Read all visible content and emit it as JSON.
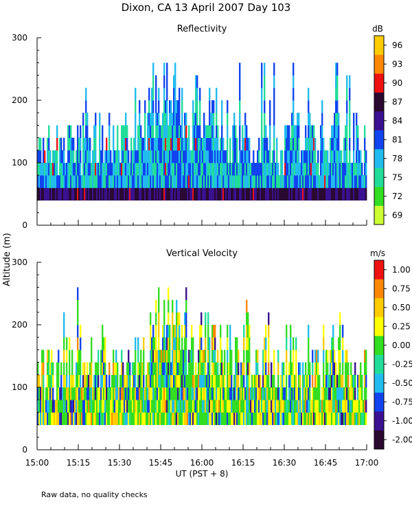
{
  "chart_data": {
    "title": "Dixon, CA 13 April 2007  Day 103",
    "ylabel": "Altitude (m)",
    "xlabel": "UT  (PST + 8)",
    "footnote": "Raw data, no quality checks",
    "x_ticks": [
      "15:00",
      "15:15",
      "15:30",
      "15:45",
      "16:00",
      "16:15",
      "16:30",
      "16:45",
      "17:00"
    ],
    "x_range_minutes": [
      0,
      120
    ],
    "panels": [
      {
        "type": "heatmap",
        "title": "Reflectivity",
        "unit": "dB",
        "ylim": [
          0,
          300
        ],
        "y_ticks": [
          "0",
          "100",
          "200",
          "300"
        ],
        "gate_bottom_m": 40,
        "gate_size_m": 20,
        "colorbar_labels": [
          "69",
          "72",
          "75",
          "78",
          "81",
          "84",
          "87",
          "90",
          "93",
          "96"
        ],
        "colorbar_colors": [
          "#ccff33",
          "#33dd22",
          "#22dd99",
          "#22bbee",
          "#1144ee",
          "#3a1190",
          "#2a0a30",
          "#ee1111",
          "#ff8800",
          "#ffcc00"
        ],
        "echo_top_profile_m": [
          140,
          150,
          130,
          160,
          170,
          150,
          160,
          170,
          180,
          150,
          160,
          170,
          175,
          180,
          230,
          260,
          240,
          220,
          200,
          190,
          210,
          215,
          200,
          190,
          180,
          160,
          150,
          160,
          190,
          150,
          140,
          180,
          160,
          150,
          150,
          140,
          200,
          170,
          150,
          140,
          160
        ]
      },
      {
        "type": "heatmap",
        "title": "Vertical Velocity",
        "unit": "m/s",
        "ylim": [
          0,
          300
        ],
        "y_ticks": [
          "0",
          "100",
          "200",
          "300"
        ],
        "gate_bottom_m": 40,
        "gate_size_m": 20,
        "colorbar_labels": [
          "-2.00",
          "-1.00",
          "-0.75",
          "-0.50",
          "-0.25",
          "0.00",
          "0.25",
          "0.50",
          "0.75",
          "1.00"
        ],
        "colorbar_colors": [
          "#2a0a30",
          "#3a1190",
          "#1144ee",
          "#22bbee",
          "#22dd99",
          "#33dd22",
          "#ffff00",
          "#ffcc00",
          "#ff8800",
          "#ee1111"
        ],
        "echo_top_profile_m": [
          140,
          150,
          130,
          160,
          170,
          150,
          160,
          170,
          180,
          150,
          160,
          170,
          175,
          180,
          230,
          260,
          240,
          220,
          200,
          190,
          210,
          215,
          200,
          190,
          180,
          160,
          150,
          160,
          190,
          150,
          140,
          180,
          160,
          150,
          150,
          140,
          200,
          170,
          150,
          140,
          160
        ]
      }
    ]
  }
}
